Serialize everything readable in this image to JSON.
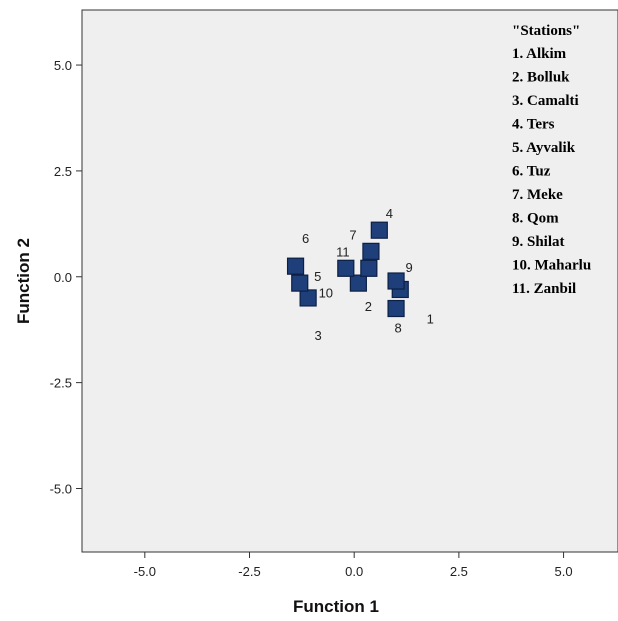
{
  "chart_data": {
    "type": "scatter",
    "title": "",
    "xlabel": "Function 1",
    "ylabel": "Function 2",
    "xlim": [
      -6.5,
      6.3
    ],
    "ylim": [
      -6.5,
      6.3
    ],
    "xticks": [
      -5.0,
      -2.5,
      0.0,
      2.5,
      5.0
    ],
    "yticks": [
      -5.0,
      -2.5,
      0.0,
      2.5,
      5.0
    ],
    "xtick_labels": [
      "-5.0",
      "-2.5",
      "0.0",
      "2.5",
      "5.0"
    ],
    "ytick_labels": [
      "-5.0",
      "-2.5",
      "0.0",
      "2.5",
      "5.0"
    ],
    "grid": false,
    "marker": "square",
    "marker_color": "#1f3f7a",
    "background": "#efefef",
    "points": [
      {
        "label": "1",
        "x": 1.1,
        "y": -0.3
      },
      {
        "label": "2",
        "x": 0.1,
        "y": -0.15
      },
      {
        "label": "3",
        "x": -1.1,
        "y": -0.5
      },
      {
        "label": "4",
        "x": 0.6,
        "y": 1.1
      },
      {
        "label": "5",
        "x": -1.3,
        "y": -0.15
      },
      {
        "label": "6",
        "x": -1.4,
        "y": 0.25
      },
      {
        "label": "7",
        "x": 0.4,
        "y": 0.6
      },
      {
        "label": "8",
        "x": 1.0,
        "y": -0.75
      },
      {
        "label": "9",
        "x": 1.0,
        "y": -0.1
      },
      {
        "label": "10",
        "x": -0.2,
        "y": 0.2
      },
      {
        "label": "11",
        "x": 0.35,
        "y": 0.2
      }
    ],
    "legend": {
      "position": "top-right",
      "title": "\"Stations\"",
      "entries": [
        "1. Alkim",
        "2. Bolluk",
        "3. Camalti",
        "4. Ters",
        "5. Ayvalik",
        "6. Tuz",
        "7. Meke",
        "8. Qom",
        "9. Shilat",
        "10. Maharlu",
        "11. Zanbil"
      ]
    }
  }
}
